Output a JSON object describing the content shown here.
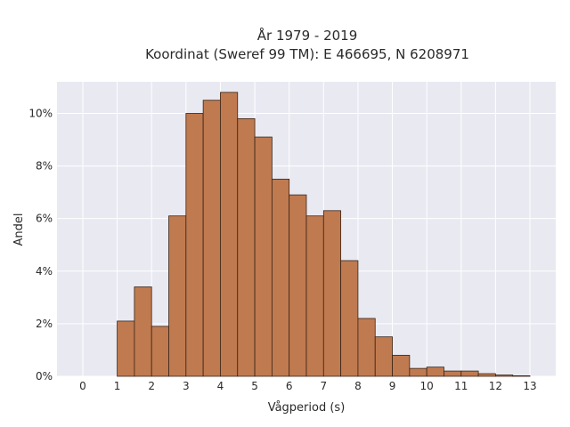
{
  "chart_data": {
    "type": "bar",
    "title_line1": "År 1979 - 2019",
    "title_line2": "Koordinat (Sweref 99 TM): E 466695, N 6208971",
    "xlabel": "Vågperiod (s)",
    "ylabel": "Andel",
    "xlim": [
      -0.75,
      13.75
    ],
    "ylim": [
      0,
      11.2
    ],
    "xticks": [
      0,
      1,
      2,
      3,
      4,
      5,
      6,
      7,
      8,
      9,
      10,
      11,
      12,
      13
    ],
    "xtick_labels": [
      "0",
      "1",
      "2",
      "3",
      "4",
      "5",
      "6",
      "7",
      "8",
      "9",
      "10",
      "11",
      "12",
      "13"
    ],
    "yticks": [
      0,
      2,
      4,
      6,
      8,
      10
    ],
    "ytick_labels": [
      "0%",
      "2%",
      "4%",
      "6%",
      "8%",
      "10%"
    ],
    "bin_width": 0.5,
    "bin_starts": [
      1.0,
      1.5,
      2.0,
      2.5,
      3.0,
      3.5,
      4.0,
      4.5,
      5.0,
      5.5,
      6.0,
      6.5,
      7.0,
      7.5,
      8.0,
      8.5,
      9.0,
      9.5,
      10.0,
      10.5,
      11.0,
      11.5,
      12.0,
      12.5
    ],
    "values": [
      2.1,
      3.4,
      1.9,
      6.1,
      10.0,
      10.5,
      10.8,
      9.8,
      9.1,
      7.5,
      6.9,
      6.1,
      6.3,
      4.4,
      2.2,
      1.5,
      0.8,
      0.3,
      0.35,
      0.2,
      0.2,
      0.1,
      0.05,
      0.02
    ],
    "grid": true,
    "colors": {
      "bar_fill": "#C07A50",
      "bar_stroke": "#3a2416",
      "plot_bg": "#E9E9F2",
      "grid": "#ffffff"
    }
  }
}
